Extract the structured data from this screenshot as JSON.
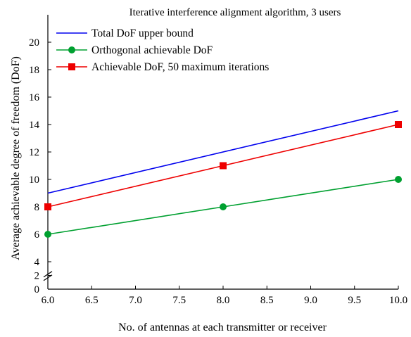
{
  "chart_data": {
    "type": "line",
    "title": "Iterative interference alignment algorithm, 3 users",
    "xlabel": "No. of antennas at each transmitter or receiver",
    "ylabel": "Average achievable degree of freedom (DoF)",
    "xlim": [
      6.0,
      10.0
    ],
    "ylim": [
      0,
      20
    ],
    "y_axis_break": "between 0 and 4 (no 2-unit gap drawn)",
    "x_ticks": [
      "6.0",
      "6.5",
      "7.0",
      "7.5",
      "8.0",
      "8.5",
      "9.0",
      "9.5",
      "10.0"
    ],
    "y_ticks": [
      "0",
      "2",
      "4",
      "6",
      "8",
      "10",
      "12",
      "14",
      "16",
      "18",
      "20"
    ],
    "grid": false,
    "legend_position": "top-left",
    "series": [
      {
        "name": "Total DoF upper bound",
        "color": "#0000ee",
        "marker": "none",
        "x": [
          6.0,
          10.0
        ],
        "y": [
          9,
          15
        ]
      },
      {
        "name": "Orthogonal achievable DoF",
        "color": "#00a030",
        "marker": "circle",
        "x": [
          6.0,
          8.0,
          10.0
        ],
        "y": [
          6,
          8,
          10
        ]
      },
      {
        "name": "Achievable DoF, 50 maximum iterations",
        "color": "#ee0000",
        "marker": "square",
        "x": [
          6.0,
          8.0,
          10.0
        ],
        "y": [
          8,
          11,
          14
        ]
      }
    ]
  }
}
